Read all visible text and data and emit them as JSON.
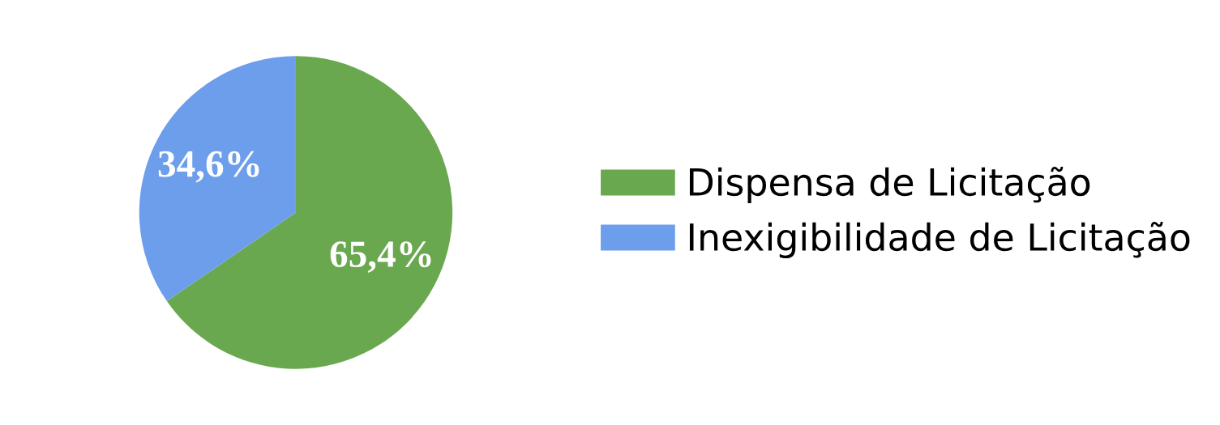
{
  "chart_data": {
    "type": "pie",
    "categories": [
      "Dispensa de Licitação",
      "Inexigibilidade de Licitação"
    ],
    "values": [
      65.4,
      34.6
    ],
    "colors": [
      "#6aa84f",
      "#6d9eeb"
    ],
    "value_labels": [
      "65,4%",
      "34,6%"
    ],
    "legend": "right"
  }
}
